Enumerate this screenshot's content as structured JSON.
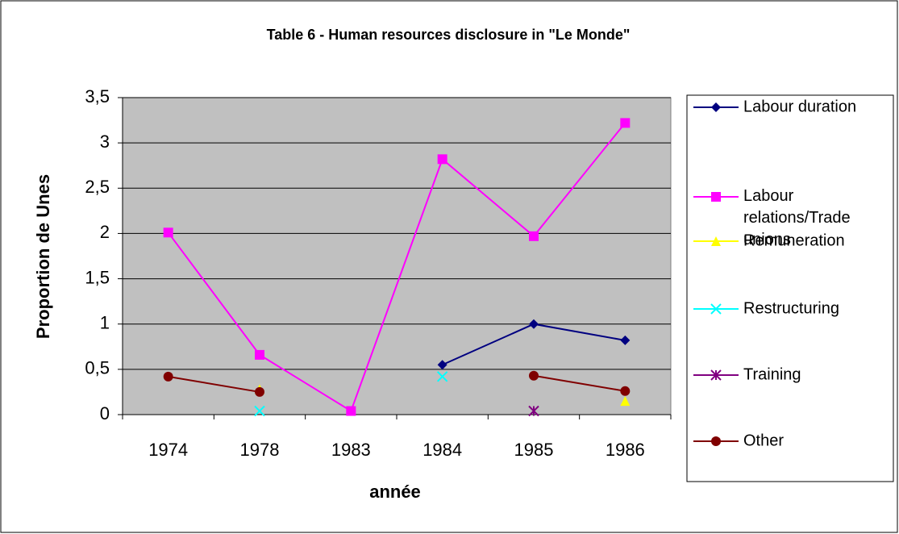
{
  "chart_data": {
    "type": "line",
    "title": "Table 6 - Human resources disclosure in \"Le Monde\"",
    "x_label": "année",
    "y_label": "Proportion de Unes",
    "categories": [
      "1974",
      "1978",
      "1983",
      "1984",
      "1985",
      "1986"
    ],
    "series": [
      {
        "name": "Labour duration",
        "color": "#000080",
        "marker": "diamond",
        "values": [
          null,
          null,
          null,
          0.55,
          1.0,
          0.82
        ]
      },
      {
        "name": "Labour relations/Trade unions",
        "color": "#ff00ff",
        "marker": "square",
        "values": [
          2.01,
          0.66,
          0.04,
          2.82,
          1.97,
          3.22
        ]
      },
      {
        "name": "Remuneration",
        "color": "#ffff00",
        "marker": "triangle",
        "values": [
          null,
          0.28,
          null,
          null,
          null,
          0.15
        ]
      },
      {
        "name": "Restructuring",
        "color": "#00ffff",
        "marker": "x",
        "values": [
          null,
          0.04,
          null,
          0.42,
          null,
          null
        ]
      },
      {
        "name": "Training",
        "color": "#800080",
        "marker": "star",
        "values": [
          null,
          null,
          null,
          null,
          0.04,
          null
        ]
      },
      {
        "name": "Other",
        "color": "#800000",
        "marker": "circle",
        "values": [
          0.42,
          0.25,
          null,
          null,
          0.43,
          0.26
        ]
      }
    ],
    "ylim": [
      0,
      3.5
    ],
    "yticks": [
      0,
      {
        "value": 0.5,
        "label": "0,5"
      },
      1,
      {
        "value": 1.5,
        "label": "1,5"
      },
      2,
      {
        "value": 2.5,
        "label": "2,5"
      },
      3,
      {
        "value": 3.5,
        "label": "3,5"
      }
    ],
    "grid": true,
    "legend": "right"
  }
}
